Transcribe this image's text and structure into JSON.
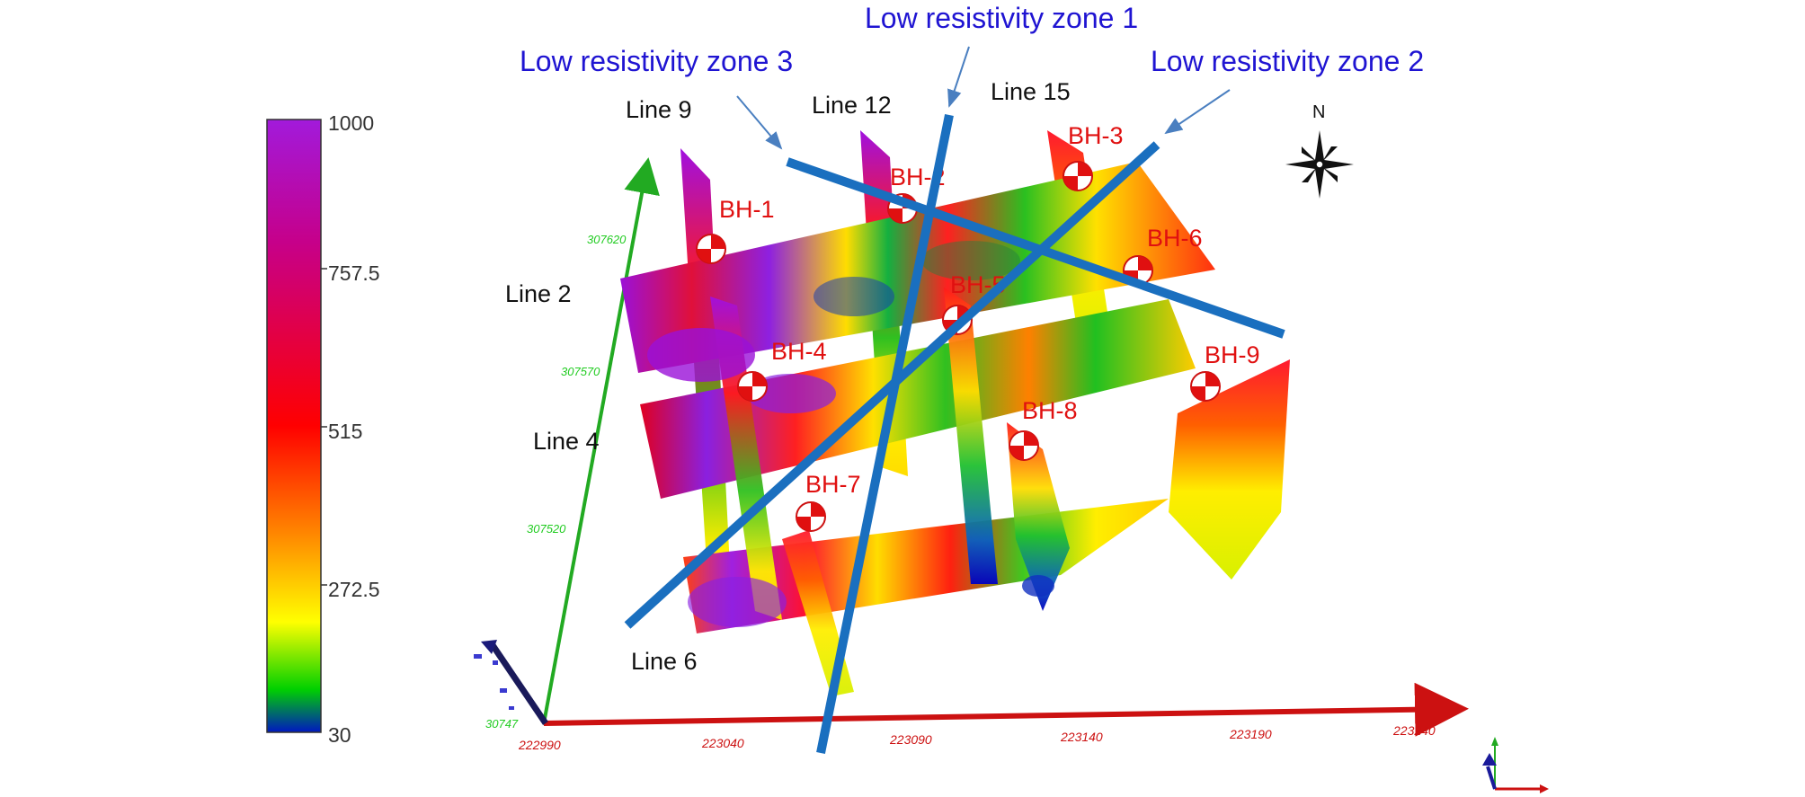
{
  "colorbar": {
    "max_label": "1000",
    "min_label": "30",
    "ticks": [
      "757.5",
      "515",
      "272.5"
    ],
    "gradient_colors": [
      "#9a00c8",
      "#c8007a",
      "#ff0000",
      "#ff7a00",
      "#ffff00",
      "#00c800",
      "#0000c8"
    ]
  },
  "zones": {
    "z1": "Low resistivity zone 1",
    "z2": "Low resistivity zone 2",
    "z3": "Low resistivity zone 3",
    "color": "#1f14d2"
  },
  "lines": {
    "l2": "Line 2",
    "l4": "Line 4",
    "l6": "Line 6",
    "l9": "Line 9",
    "l12": "Line 12",
    "l15": "Line 15"
  },
  "boreholes": [
    "BH-1",
    "BH-2",
    "BH-3",
    "BH-4",
    "BH-5",
    "BH-6",
    "BH-7",
    "BH-8",
    "BH-9"
  ],
  "x_axis_ticks": [
    "222990",
    "223040",
    "223090",
    "223140",
    "223190",
    "223240"
  ],
  "y_axis_ticks": [
    "307620",
    "307570",
    "307520",
    "30747"
  ],
  "compass": {
    "north_label": "N",
    "icon": "compass-rose-icon"
  },
  "colors": {
    "x_axis": "#cc1111",
    "y_axis": "#22aa22",
    "zone_line": "#1a6fbf",
    "borehole_text": "#e01010"
  }
}
